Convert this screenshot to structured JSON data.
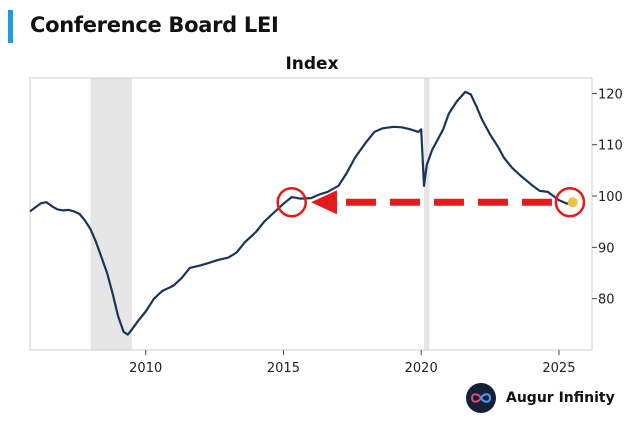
{
  "header": {
    "title": "Conference Board LEI",
    "accent_color": "#1e9be6"
  },
  "brand": {
    "name": "Augur Infinity",
    "logo_icon": "infinity-icon"
  },
  "colors": {
    "line": "#1b3558",
    "recession": "#e6e6e6",
    "annotation": "#e31b1b",
    "marker": "#f0c040"
  },
  "chart_data": {
    "type": "line",
    "title": "Index",
    "xlabel": "",
    "ylabel": "",
    "xlim": [
      2005.8,
      2026.2
    ],
    "ylim": [
      70,
      123
    ],
    "x_ticks": [
      2010,
      2015,
      2020,
      2025
    ],
    "y_ticks": [
      80,
      90,
      100,
      110,
      120
    ],
    "y_axis_side": "right",
    "grid": false,
    "recession_shading": [
      [
        2008.0,
        2009.5
      ],
      [
        2020.1,
        2020.3
      ]
    ],
    "series": [
      {
        "x": [
          2005.8,
          2006.0,
          2006.2,
          2006.4,
          2006.6,
          2006.8,
          2007.0,
          2007.2,
          2007.4,
          2007.6,
          2007.8,
          2008.0,
          2008.2,
          2008.4,
          2008.6,
          2008.8,
          2009.0,
          2009.2,
          2009.35,
          2009.5,
          2009.7,
          2010.0,
          2010.3,
          2010.6,
          2011.0,
          2011.3,
          2011.6,
          2012.0,
          2012.3,
          2012.6,
          2013.0,
          2013.3,
          2013.6,
          2014.0,
          2014.3,
          2014.6,
          2015.0,
          2015.3,
          2015.6,
          2016.0,
          2016.3,
          2016.6,
          2017.0,
          2017.3,
          2017.6,
          2018.0,
          2018.3,
          2018.6,
          2019.0,
          2019.3,
          2019.6,
          2019.9,
          2020.0,
          2020.1,
          2020.2,
          2020.4,
          2020.6,
          2020.8,
          2021.0,
          2021.3,
          2021.6,
          2021.8,
          2022.0,
          2022.2,
          2022.5,
          2022.8,
          2023.0,
          2023.3,
          2023.6,
          2024.0,
          2024.3,
          2024.6,
          2025.0,
          2025.3,
          2025.5
        ],
        "y": [
          97,
          97.8,
          98.6,
          98.8,
          98.0,
          97.4,
          97.2,
          97.3,
          97.0,
          96.5,
          95.2,
          93.5,
          91.0,
          88.0,
          85.0,
          81.0,
          76.5,
          73.5,
          73.0,
          74.0,
          75.5,
          77.5,
          80.0,
          81.5,
          82.5,
          84.0,
          86.0,
          86.5,
          87.0,
          87.5,
          88.0,
          89.0,
          91.0,
          93.0,
          95.0,
          96.5,
          98.5,
          99.8,
          99.5,
          99.6,
          100.3,
          100.8,
          102.0,
          104.5,
          107.5,
          110.5,
          112.5,
          113.2,
          113.5,
          113.4,
          113.0,
          112.5,
          113.0,
          102.0,
          106.0,
          109.0,
          111.0,
          113.0,
          116.0,
          118.5,
          120.3,
          119.8,
          117.5,
          115.0,
          112.0,
          109.5,
          107.5,
          105.5,
          104.0,
          102.2,
          101.0,
          100.8,
          99.2,
          98.5,
          98.8
        ]
      }
    ],
    "annotations": {
      "arrow": {
        "from": [
          2025.4,
          98.8
        ],
        "to": [
          2016.0,
          98.8
        ],
        "style": "dashed"
      },
      "circles": [
        [
          2015.3,
          98.8
        ],
        [
          2025.4,
          98.8
        ]
      ],
      "marker_point": [
        2025.5,
        98.8
      ]
    }
  }
}
